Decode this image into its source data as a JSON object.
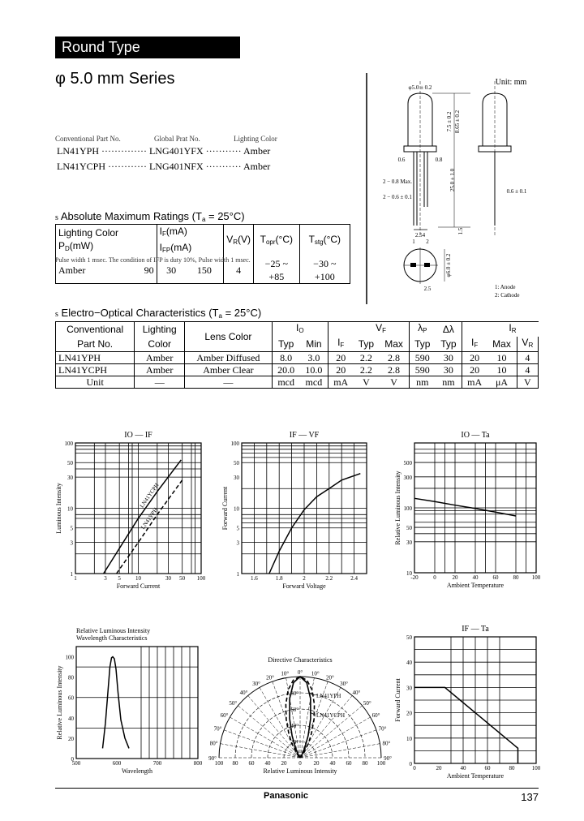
{
  "header": {
    "title": "Round Type"
  },
  "series_title": "φ 5.0 mm  Series",
  "parts": {
    "headers": [
      "Conventional Part No.",
      "Global Prat No.",
      "Lighting Color"
    ],
    "rows": [
      {
        "conv": "LN41YPH",
        "global": "LNG401YFX",
        "color": "Amber"
      },
      {
        "conv": "LN41YCPH",
        "global": "LNG401NFX",
        "color": "Amber"
      }
    ]
  },
  "abs_ratings": {
    "bullet": "s",
    "heading": [
      " Absolute Maximum Ratings (T",
      {
        "sub": "a"
      },
      " = 25°C)"
    ],
    "headers": [
      [
        "Lighting Color"
      ],
      [
        "P",
        {
          "sub": "D"
        },
        "(mW)"
      ],
      [
        "I",
        {
          "sub": "F"
        },
        "(mA)"
      ],
      [
        "I",
        {
          "sub": "FP"
        },
        "(mA)"
      ],
      [
        "V",
        {
          "sub": "R"
        },
        "(V)"
      ],
      [
        "T",
        {
          "sub": "opr"
        },
        "(°C)"
      ],
      [
        "T",
        {
          "sub": "stg"
        },
        "(°C)"
      ]
    ],
    "row": [
      "Amber",
      "90",
      "30",
      "150",
      "4",
      "−25 ~ +85",
      "−30 ~ +100"
    ],
    "note": "Pulse width 1 msec. The condition of IFP is duty 10%, Pulse width 1 msec."
  },
  "eo": {
    "bullet": "s",
    "heading": [
      " Electro−Optical Characteristics (T",
      {
        "sub": "a"
      },
      " = 25°C)"
    ],
    "h1": [
      "Conventional",
      "Lighting",
      "Lens Color",
      [
        "I",
        {
          "sub": "O"
        }
      ],
      [
        "V",
        {
          "sub": "F"
        }
      ],
      [
        "λ",
        {
          "sub": "P"
        }
      ],
      [
        "Δλ"
      ],
      [
        "I",
        {
          "sub": "R"
        }
      ]
    ],
    "h2": [
      "Part No.",
      "Color",
      "Typ",
      "Min",
      [
        "I",
        {
          "sub": "F"
        }
      ],
      "Typ",
      "Max",
      "Typ",
      "Typ",
      [
        "I",
        {
          "sub": "F"
        }
      ],
      "Max",
      [
        "V",
        {
          "sub": "R"
        }
      ]
    ],
    "rows": [
      [
        "LN41YPH",
        "Amber",
        "Amber Diffused",
        "8.0",
        "3.0",
        "20",
        "2.2",
        "2.8",
        "590",
        "30",
        "20",
        "10",
        "4"
      ],
      [
        "LN41YCPH",
        "Amber",
        "Amber Clear",
        "20.0",
        "10.0",
        "20",
        "2.2",
        "2.8",
        "590",
        "30",
        "20",
        "10",
        "4"
      ],
      [
        "Unit",
        "—",
        "—",
        "mcd",
        "mcd",
        "mA",
        "V",
        "V",
        "nm",
        "nm",
        "mA",
        "μA",
        "V"
      ]
    ]
  },
  "dimensions": {
    "unit": "Unit: mm",
    "dia": "φ5.0 ± 0.2",
    "height1": "7.5 ± 0.2",
    "height2": "8.65 ± 0.2",
    "lead_len": "25.0 ± 1.0",
    "lead_max": "2 − 0.8 Max.",
    "lead_w": "2 − 0.6 ± 0.1",
    "pitch": "2.54",
    "p1": "1",
    "p2": "2",
    "side_w": "0.6 ± 0.1",
    "d06": "0.6",
    "d08": "0.8",
    "flange": "φ6.0 ± 0.2",
    "gap": "2.5",
    "s15": "1.5",
    "anode": "1: Anode",
    "cathode": "2: Cathode"
  },
  "chart_data": [
    {
      "type": "line",
      "title": "IO — IF",
      "xlabel": "Forward Current",
      "ylabel": "Luminous Intensity",
      "xscale": "log",
      "yscale": "log",
      "xlim": [
        1,
        100
      ],
      "ylim": [
        1,
        100
      ],
      "xticks": [
        1,
        3,
        5,
        10,
        30,
        50,
        100
      ],
      "yticks": [
        1,
        3,
        5,
        10,
        30,
        50,
        100
      ],
      "grid": true,
      "series": [
        {
          "name": "LN41YCPH",
          "style": "solid",
          "x": [
            2.8,
            10,
            20,
            48
          ],
          "y": [
            1,
            7,
            18,
            55
          ]
        },
        {
          "name": "LN41YPH",
          "style": "dashed",
          "x": [
            4.5,
            10,
            20,
            50
          ],
          "y": [
            1,
            3,
            8,
            27
          ]
        }
      ]
    },
    {
      "type": "line",
      "title": "IF — VF",
      "xlabel": "Forward Voltage",
      "ylabel": "Forward Current",
      "xscale": "linear",
      "yscale": "log",
      "xlim": [
        1.5,
        2.5
      ],
      "ylim": [
        1,
        100
      ],
      "xticks": [
        1.6,
        1.8,
        2.0,
        2.2,
        2.4
      ],
      "yticks": [
        1,
        3,
        5,
        10,
        30,
        50,
        100
      ],
      "grid": true,
      "series": [
        {
          "style": "solid",
          "x": [
            1.72,
            1.8,
            1.9,
            2.0,
            2.1,
            2.2,
            2.3,
            2.45
          ],
          "y": [
            1,
            2.2,
            5,
            9.5,
            15,
            20,
            27,
            34
          ]
        }
      ]
    },
    {
      "type": "line",
      "title": "IO — Ta",
      "xlabel": "Ambient Temperature",
      "ylabel": "Relative Luminous Intensity",
      "xscale": "linear",
      "yscale": "log",
      "xlim": [
        -20,
        100
      ],
      "ylim": [
        10,
        1000
      ],
      "xticks": [
        -20,
        0,
        20,
        40,
        60,
        80,
        100
      ],
      "yticks": [
        10,
        30,
        50,
        100,
        300,
        500
      ],
      "grid": true,
      "series": [
        {
          "style": "solid",
          "x": [
            -20,
            0,
            20,
            40,
            60,
            80
          ],
          "y": [
            140,
            125,
            110,
            98,
            86,
            75
          ]
        }
      ]
    },
    {
      "type": "line",
      "title": "Relative Luminous Intensity",
      "subtitle": "Wavelength Characteristics",
      "xlabel": "Wavelength",
      "ylabel": "Relative Luminous Intensity",
      "xscale": "linear",
      "yscale": "linear",
      "xlim": [
        500,
        800
      ],
      "ylim": [
        0,
        110
      ],
      "xticks": [
        500,
        600,
        700,
        800
      ],
      "yticks": [
        0,
        20,
        40,
        60,
        80,
        100
      ],
      "grid": true,
      "series": [
        {
          "style": "solid",
          "x": [
            565,
            572,
            578,
            583,
            587,
            590,
            594,
            598,
            603,
            610,
            620,
            630
          ],
          "y": [
            10,
            35,
            65,
            90,
            99,
            100,
            98,
            88,
            65,
            38,
            20,
            10
          ]
        }
      ]
    },
    {
      "type": "polar",
      "title": "Directive Characteristics",
      "xlabel": "Relative Luminous Intensity",
      "rlim": [
        0,
        100
      ],
      "angle_ticks": [
        "0°",
        "10°",
        "20°",
        "30°",
        "40°",
        "50°",
        "60°",
        "70°",
        "80°",
        "90°"
      ],
      "rticks": [
        20,
        40,
        60,
        80
      ],
      "xticks": [
        100,
        80,
        60,
        40,
        20,
        0,
        20,
        40,
        60,
        80,
        100
      ],
      "series": [
        {
          "name": "LN41YCPH",
          "style": "solid",
          "angle": [
            0,
            5,
            10,
            15,
            20,
            25,
            30,
            40,
            50
          ],
          "r": [
            100,
            93,
            74,
            50,
            29,
            14,
            6,
            1,
            0
          ]
        },
        {
          "name": "LN41YPH",
          "style": "dashed",
          "angle": [
            0,
            5,
            10,
            15,
            20,
            25,
            30,
            40,
            50
          ],
          "r": [
            100,
            96,
            85,
            68,
            50,
            33,
            21,
            6,
            1
          ]
        }
      ]
    },
    {
      "type": "line",
      "title": "IF — Ta",
      "xlabel": "Ambient Temperature",
      "ylabel": "Forward Current",
      "xscale": "linear",
      "yscale": "linear",
      "xlim": [
        0,
        100
      ],
      "ylim": [
        0,
        50
      ],
      "xticks": [
        0,
        20,
        40,
        60,
        80,
        100
      ],
      "yticks": [
        0,
        10,
        20,
        30,
        40,
        50
      ],
      "grid": true,
      "series": [
        {
          "style": "solid",
          "x": [
            0,
            25,
            85,
            85
          ],
          "y": [
            30,
            30,
            6,
            0
          ]
        }
      ]
    }
  ],
  "footer": {
    "brand": "Panasonic",
    "page": "137"
  }
}
